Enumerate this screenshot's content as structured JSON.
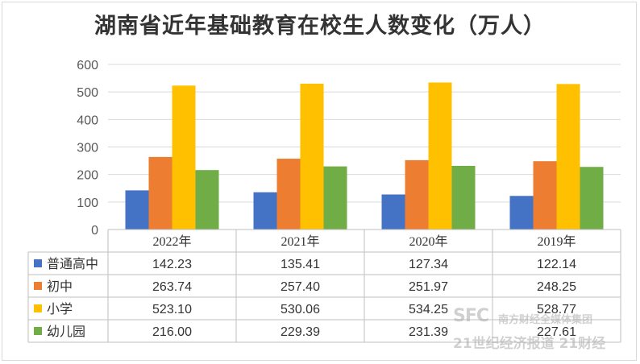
{
  "chart_data": {
    "type": "bar",
    "title": "湖南省近年基础教育在校生人数变化（万人）",
    "categories": [
      "2022年",
      "2021年",
      "2020年",
      "2019年"
    ],
    "series": [
      {
        "name": "普通高中",
        "color": "#4472c4",
        "values": [
          "142.23",
          "135.41",
          "127.34",
          "122.14"
        ]
      },
      {
        "name": "初中",
        "color": "#ed7d31",
        "values": [
          "263.74",
          "257.40",
          "251.97",
          "248.25"
        ]
      },
      {
        "name": "小学",
        "color": "#ffc000",
        "values": [
          "523.10",
          "530.06",
          "534.25",
          "528.77"
        ]
      },
      {
        "name": "幼儿园",
        "color": "#70ad47",
        "values": [
          "216.00",
          "229.39",
          "231.39",
          "227.61"
        ]
      }
    ],
    "ylim": [
      0,
      600
    ],
    "yticks": [
      "0",
      "100",
      "200",
      "300",
      "400",
      "500",
      "600"
    ],
    "grid": true,
    "legend": "data-table"
  },
  "watermark": {
    "line1": "SFC",
    "line1b": "南方财经全媒体集团",
    "line2": "21世纪经济报道 21财经"
  }
}
